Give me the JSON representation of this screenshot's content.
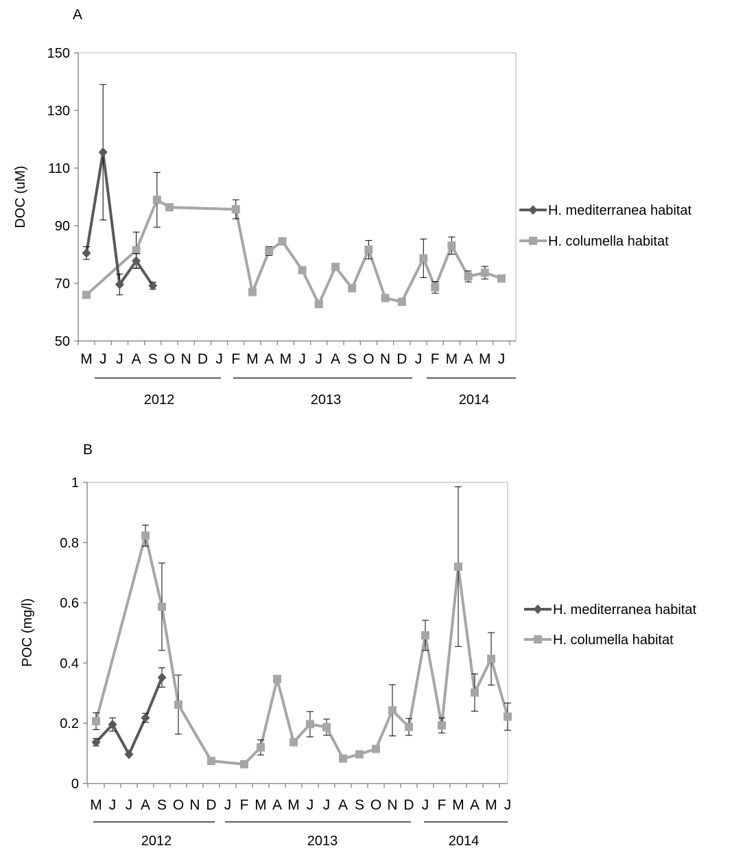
{
  "panels": [
    {
      "panel_label": "A",
      "ylabel": "DOC (uM)",
      "months": [
        "M",
        "J",
        "J",
        "A",
        "S",
        "O",
        "N",
        "D",
        "J",
        "F",
        "M",
        "A",
        "M",
        "J",
        "J",
        "A",
        "S",
        "O",
        "N",
        "D",
        "J",
        "F",
        "M",
        "A",
        "M",
        "J"
      ],
      "years": [
        "2012",
        "2013",
        "2014"
      ],
      "legend": [
        "H. mediterranea habitat",
        "H. columella habitat"
      ]
    },
    {
      "panel_label": "B",
      "ylabel": "POC (mg/l)",
      "months": [
        "M",
        "J",
        "J",
        "A",
        "S",
        "O",
        "N",
        "D",
        "J",
        "F",
        "M",
        "A",
        "M",
        "J",
        "J",
        "A",
        "S",
        "O",
        "N",
        "D",
        "J",
        "F",
        "M",
        "A",
        "M",
        "J"
      ],
      "years": [
        "2012",
        "2013",
        "2014"
      ],
      "legend": [
        "H. mediterranea habitat",
        "H. columella habitat"
      ]
    }
  ],
  "chart_data": [
    {
      "type": "line",
      "ylabel": "DOC (uM)",
      "ylim": [
        50,
        150
      ],
      "yticks": [
        50,
        70,
        90,
        110,
        130,
        150
      ],
      "legend_position": "right",
      "series": [
        {
          "name": "H. mediterranea habitat",
          "color": "#595959",
          "marker": "diamond",
          "points": [
            {
              "x": 0.0,
              "y": 80.5,
              "err": 2.2
            },
            {
              "x": 1.0,
              "y": 115.5,
              "err": 23.5
            },
            {
              "x": 2.0,
              "y": 69.6,
              "err": 3.6
            },
            {
              "x": 3.0,
              "y": 77.8,
              "err": 2.5
            },
            {
              "x": 4.0,
              "y": 69.2,
              "err": 1.2
            }
          ]
        },
        {
          "name": "H. columella habitat",
          "color": "#a6a6a6",
          "marker": "square",
          "points": [
            {
              "x": 0.0,
              "y": 66.0,
              "err": 0
            },
            {
              "x": 3.0,
              "y": 81.5,
              "err": 6.3
            },
            {
              "x": 4.25,
              "y": 99.0,
              "err": 9.5
            },
            {
              "x": 5.0,
              "y": 96.4,
              "err": 0
            },
            {
              "x": 9.0,
              "y": 95.7,
              "err": 3.3
            },
            {
              "x": 10.0,
              "y": 67.0,
              "err": 0
            },
            {
              "x": 11.0,
              "y": 81.2,
              "err": 1.5
            },
            {
              "x": 11.8,
              "y": 84.6,
              "err": 0
            },
            {
              "x": 13.0,
              "y": 74.6,
              "err": 0
            },
            {
              "x": 14.0,
              "y": 62.8,
              "err": 1.2
            },
            {
              "x": 15.0,
              "y": 75.7,
              "err": 1.2
            },
            {
              "x": 16.0,
              "y": 68.3,
              "err": 0
            },
            {
              "x": 17.0,
              "y": 81.7,
              "err": 3.2
            },
            {
              "x": 18.0,
              "y": 64.9,
              "err": 1.0
            },
            {
              "x": 19.0,
              "y": 63.6,
              "err": 0
            },
            {
              "x": 20.3,
              "y": 78.7,
              "err": 6.7
            },
            {
              "x": 21.0,
              "y": 68.6,
              "err": 2.0
            },
            {
              "x": 22.0,
              "y": 83.1,
              "err": 3.0
            },
            {
              "x": 23.0,
              "y": 72.4,
              "err": 1.9
            },
            {
              "x": 24.0,
              "y": 73.7,
              "err": 2.2
            },
            {
              "x": 25.0,
              "y": 71.7,
              "err": 0
            }
          ]
        }
      ]
    },
    {
      "type": "line",
      "ylabel": "POC (mg/l)",
      "ylim": [
        0,
        1
      ],
      "yticks": [
        0,
        0.2,
        0.4,
        0.6,
        0.8,
        1
      ],
      "legend_position": "right",
      "series": [
        {
          "name": "H. mediterranea habitat",
          "color": "#595959",
          "marker": "diamond",
          "points": [
            {
              "x": 0.0,
              "y": 0.137,
              "err": 0.012
            },
            {
              "x": 1.0,
              "y": 0.196,
              "err": 0.022
            },
            {
              "x": 2.0,
              "y": 0.097,
              "err": 0
            },
            {
              "x": 3.0,
              "y": 0.218,
              "err": 0.015
            },
            {
              "x": 4.0,
              "y": 0.352,
              "err": 0.032
            }
          ]
        },
        {
          "name": "H. columella habitat",
          "color": "#a6a6a6",
          "marker": "square",
          "points": [
            {
              "x": 0.0,
              "y": 0.207,
              "err": 0.028
            },
            {
              "x": 3.0,
              "y": 0.823,
              "err": 0.035
            },
            {
              "x": 4.0,
              "y": 0.587,
              "err": 0.145
            },
            {
              "x": 5.0,
              "y": 0.262,
              "err": 0.098
            },
            {
              "x": 7.0,
              "y": 0.075,
              "err": 0
            },
            {
              "x": 9.0,
              "y": 0.064,
              "err": 0
            },
            {
              "x": 10.0,
              "y": 0.12,
              "err": 0.025
            },
            {
              "x": 11.0,
              "y": 0.347,
              "err": 0
            },
            {
              "x": 12.0,
              "y": 0.137,
              "err": 0
            },
            {
              "x": 13.0,
              "y": 0.197,
              "err": 0.042
            },
            {
              "x": 14.0,
              "y": 0.187,
              "err": 0.027
            },
            {
              "x": 15.0,
              "y": 0.083,
              "err": 0
            },
            {
              "x": 16.0,
              "y": 0.097,
              "err": 0.012
            },
            {
              "x": 17.0,
              "y": 0.115,
              "err": 0
            },
            {
              "x": 18.0,
              "y": 0.243,
              "err": 0.085
            },
            {
              "x": 19.0,
              "y": 0.188,
              "err": 0.028
            },
            {
              "x": 20.0,
              "y": 0.492,
              "err": 0.05
            },
            {
              "x": 21.0,
              "y": 0.193,
              "err": 0.025
            },
            {
              "x": 22.0,
              "y": 0.72,
              "err": 0.265
            },
            {
              "x": 23.0,
              "y": 0.302,
              "err": 0.062
            },
            {
              "x": 24.0,
              "y": 0.414,
              "err": 0.087
            },
            {
              "x": 25.0,
              "y": 0.222,
              "err": 0.045
            }
          ]
        }
      ]
    }
  ]
}
